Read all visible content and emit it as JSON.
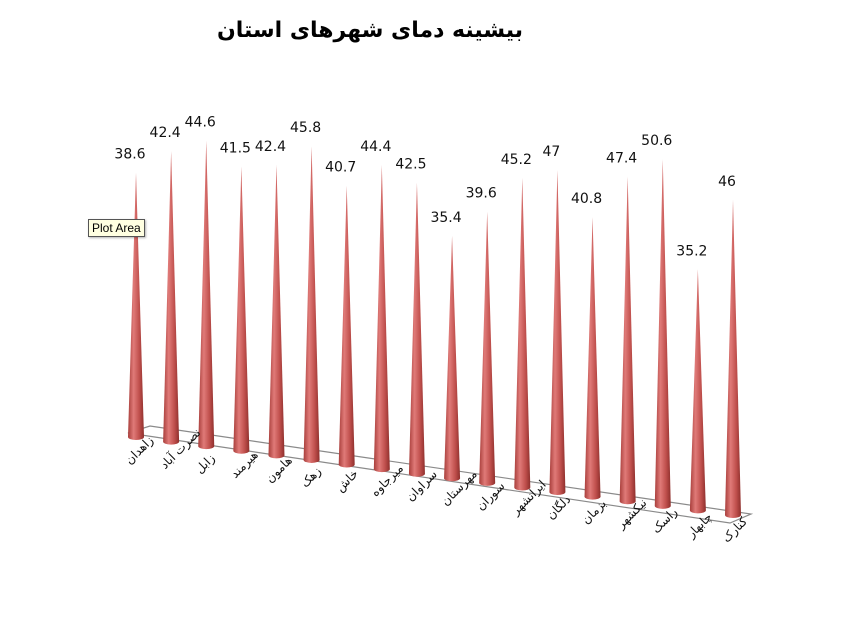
{
  "title": "بیشینه دمای شهرهای استان",
  "tooltip": "Plot Area",
  "colors": {
    "cone": "#c0504d",
    "cone_light": "#e07a78",
    "cone_dark": "#8e2f2c",
    "floor": "#888888"
  },
  "chart_data": {
    "type": "bar",
    "subtype": "3d-cone",
    "title": "بیشینه دمای شهرهای استان",
    "categories": [
      "زاهدان",
      "نصرت آباد",
      "زابل",
      "هیرمند",
      "هامون",
      "زهک",
      "خاش",
      "میرجاوه",
      "سراوان",
      "مهرستان",
      "سوران",
      "ایرانشهر",
      "دلگان",
      "بزمان",
      "نیکشهر",
      "راسک",
      "چابهار",
      "کنارک"
    ],
    "values": [
      38.6,
      42.4,
      44.6,
      41.5,
      42.4,
      45.8,
      40.7,
      44.4,
      42.5,
      35.4,
      39.6,
      45.2,
      47,
      40.8,
      47.4,
      50.6,
      35.2,
      46
    ],
    "xlabel": "",
    "ylabel": "",
    "data_labels": true,
    "grid": false,
    "legend": "none"
  }
}
